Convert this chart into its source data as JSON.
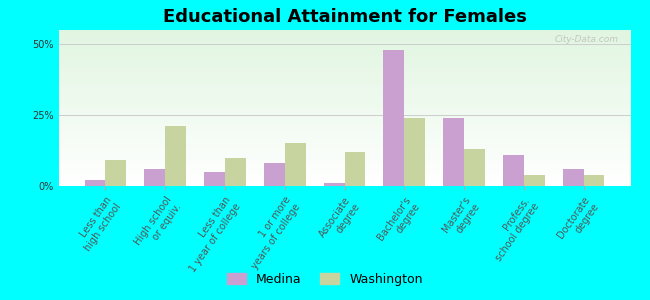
{
  "title": "Educational Attainment for Females",
  "categories": [
    "Less than\nhigh school",
    "High school\nor equiv.",
    "Less than\n1 year of college",
    "1 or more\nyears of college",
    "Associate\ndegree",
    "Bachelor's\ndegree",
    "Master's\ndegree",
    "Profess.\nschool degree",
    "Doctorate\ndegree"
  ],
  "medina": [
    2.0,
    6.0,
    5.0,
    8.0,
    1.0,
    48.0,
    24.0,
    11.0,
    6.0
  ],
  "washington": [
    9.0,
    21.0,
    10.0,
    15.0,
    12.0,
    24.0,
    13.0,
    4.0,
    4.0
  ],
  "medina_color": "#c9a0d0",
  "washington_color": "#c8d4a0",
  "outer_background": "#00ffff",
  "ylim": [
    0,
    55
  ],
  "yticks": [
    0,
    25,
    50
  ],
  "ytick_labels": [
    "0%",
    "25%",
    "50%"
  ],
  "grid_color": "#cccccc",
  "title_fontsize": 13,
  "tick_fontsize": 7.0,
  "legend_fontsize": 9,
  "bar_width": 0.35,
  "watermark": "City-Data.com"
}
